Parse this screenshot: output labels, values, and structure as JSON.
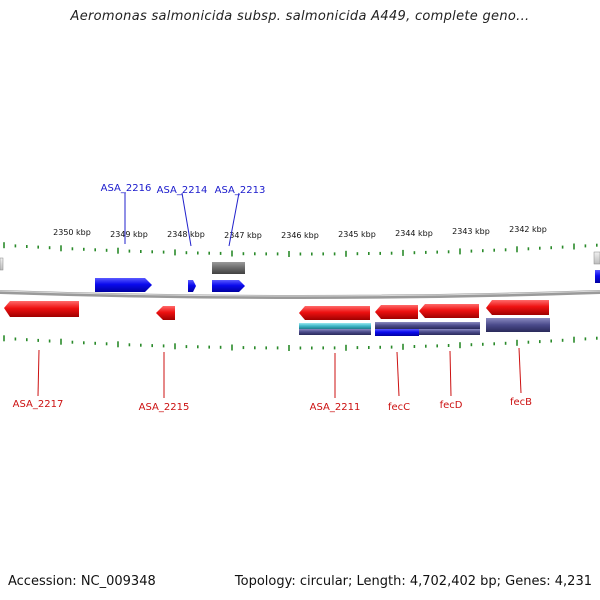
{
  "title": "Aeromonas salmonicida subsp. salmonicida A449, complete geno...",
  "footer": {
    "accession": "Accession: NC_009348",
    "topology": "Topology: circular; Length: 4,702,402 bp; Genes: 4,231"
  },
  "scale_labels": [
    "2350 kbp",
    "2349 kbp",
    "2348 kbp",
    "2347 kbp",
    "2346 kbp",
    "2345 kbp",
    "2344 kbp",
    "2343 kbp",
    "2342 kbp"
  ],
  "top_gene_labels": [
    "ASA_2216",
    "ASA_2214",
    "ASA_2213"
  ],
  "bottom_gene_labels": [
    "ASA_2217",
    "ASA_2215",
    "ASA_2211",
    "fecC",
    "fecD",
    "fecB"
  ],
  "colors": {
    "forward_gene": "#0000ee",
    "reverse_gene": "#ee0000",
    "tick": "#2a8a2a",
    "backbone": "#888888",
    "feature_gray": "#707070",
    "feature_purple": "#4a4a8a",
    "feature_cyan": "#3fb7c7"
  }
}
